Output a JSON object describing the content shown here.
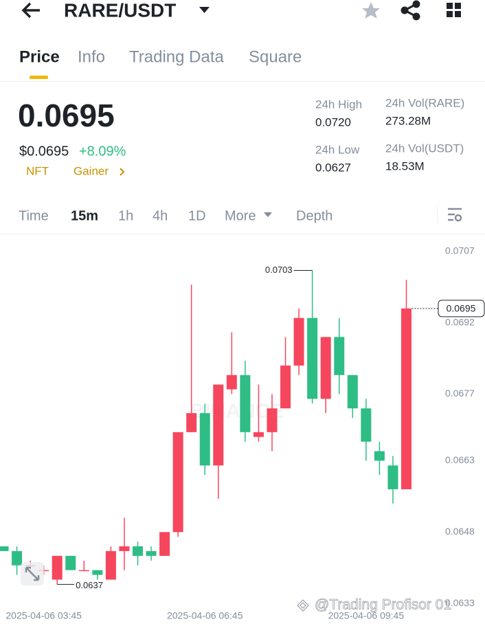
{
  "header": {
    "title": "RARE/USDT"
  },
  "tabs": [
    "Price",
    "Info",
    "Trading Data",
    "Square"
  ],
  "ticker": {
    "price": "0.0695",
    "fiat_price": "$0.0695",
    "change": "+8.09%",
    "tags": [
      "NFT",
      "Gainer"
    ]
  },
  "stats": [
    {
      "label": "24h High",
      "value": "0.0720"
    },
    {
      "label": "24h Low",
      "value": "0.0627"
    },
    {
      "label": "24h Vol(RARE)",
      "value": "273.28M"
    },
    {
      "label": "24h Vol(USDT)",
      "value": "18.53M"
    }
  ],
  "intervals": [
    "Time",
    "15m",
    "1h",
    "4h",
    "1D",
    "More",
    "Depth"
  ],
  "watermark": "@Trading Profisor 01",
  "chart_data": {
    "type": "candlestick",
    "brand": "BINANCE",
    "categories": [
      null,
      null,
      null,
      "2025-04-06 03:45",
      null,
      null,
      null,
      null,
      null,
      null,
      null,
      null,
      null,
      null,
      null,
      "2025-04-06 06:45",
      null,
      null,
      null,
      null,
      null,
      null,
      null,
      null,
      null,
      null,
      null,
      "2025-04-06 09:45",
      null,
      null,
      null
    ],
    "open": [
      0.0645,
      0.0644,
      0.0641,
      0.064,
      0.0638,
      0.0643,
      0.064,
      0.064,
      0.0638,
      0.0644,
      0.0645,
      0.0644,
      0.0643,
      0.0648,
      0.0669,
      0.0673,
      0.0662,
      0.0678,
      0.0681,
      0.0668,
      0.0669,
      0.0674,
      0.0683,
      0.0693,
      0.0676,
      0.0689,
      0.0681,
      0.0674,
      0.0665,
      0.0662,
      0.0657
    ],
    "high": [
      0.0645,
      0.0645,
      0.0642,
      0.0641,
      0.0643,
      0.0643,
      0.0642,
      0.064,
      0.0645,
      0.0651,
      0.0646,
      0.0645,
      0.0648,
      0.0669,
      0.07,
      0.0675,
      0.0679,
      0.069,
      0.0684,
      0.0679,
      0.0677,
      0.0689,
      0.0695,
      0.0703,
      0.0689,
      0.0693,
      0.0681,
      0.0676,
      0.0667,
      0.0664,
      0.0701
    ],
    "low": [
      0.0644,
      0.0639,
      0.064,
      0.0639,
      0.0637,
      0.064,
      0.064,
      0.0638,
      0.0638,
      0.064,
      0.0641,
      0.0642,
      0.0643,
      0.0647,
      0.0669,
      0.066,
      0.0655,
      0.0677,
      0.0667,
      0.0667,
      0.0665,
      0.0674,
      0.0681,
      0.0675,
      0.0673,
      0.0677,
      0.0672,
      0.0663,
      0.066,
      0.0654,
      0.0657
    ],
    "close": [
      0.0644,
      0.0641,
      0.0641,
      0.064,
      0.0643,
      0.064,
      0.064,
      0.0639,
      0.0644,
      0.0645,
      0.0643,
      0.0643,
      0.0648,
      0.0669,
      0.0673,
      0.0662,
      0.0679,
      0.0681,
      0.0669,
      0.0669,
      0.0674,
      0.0683,
      0.0693,
      0.0676,
      0.0689,
      0.0681,
      0.0674,
      0.0667,
      0.0663,
      0.0657,
      0.0695
    ],
    "up_color": "#f6465d",
    "down_color": "#2ebd85",
    "ylim": [
      0.0632,
      0.071
    ],
    "yticks": [
      0.0707,
      0.0692,
      0.0677,
      0.0663,
      0.0648,
      0.0633
    ],
    "max_label": "0.0703",
    "min_label": "0.0637",
    "price_label": "0.0695"
  }
}
